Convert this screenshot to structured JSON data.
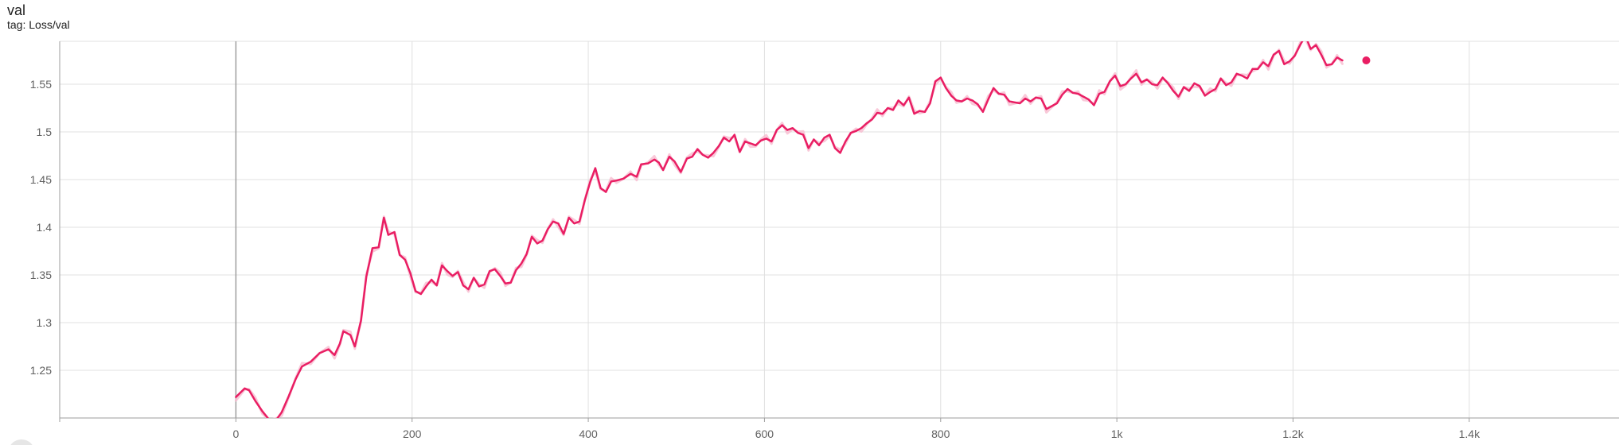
{
  "card": {
    "title": "val",
    "tag": "tag: Loss/val"
  },
  "colors": {
    "line": "#e91e63",
    "raw_line": "#f8bbd0",
    "grid": "#e0e0e0",
    "axis": "#9e9e9e",
    "zero_line": "#9e9e9e"
  },
  "chart_data": {
    "type": "line",
    "title": "val",
    "subtitle": "tag: Loss/val",
    "xlabel": "",
    "ylabel": "",
    "xlim": [
      -200,
      1570
    ],
    "ylim": [
      1.2,
      1.595
    ],
    "x_ticks": [
      0,
      200,
      400,
      600,
      800,
      1000,
      1200,
      1400
    ],
    "x_tick_labels": [
      "0",
      "200",
      "400",
      "600",
      "800",
      "1k",
      "1.2k",
      "1.4k"
    ],
    "y_ticks": [
      1.25,
      1.3,
      1.35,
      1.4,
      1.45,
      1.5,
      1.55
    ],
    "y_tick_labels": [
      "1.25",
      "1.3",
      "1.35",
      "1.4",
      "1.45",
      "1.5",
      "1.55"
    ],
    "grid": true,
    "series": [
      {
        "name": "",
        "color": "#e91e63",
        "points": [
          [
            0,
            1.222
          ],
          [
            10,
            1.231
          ],
          [
            15,
            1.229
          ],
          [
            22,
            1.218
          ],
          [
            30,
            1.207
          ],
          [
            38,
            1.198
          ],
          [
            45,
            1.197
          ],
          [
            52,
            1.206
          ],
          [
            60,
            1.223
          ],
          [
            68,
            1.241
          ],
          [
            75,
            1.254
          ],
          [
            85,
            1.259
          ],
          [
            95,
            1.268
          ],
          [
            105,
            1.272
          ],
          [
            112,
            1.266
          ],
          [
            118,
            1.278
          ],
          [
            122,
            1.291
          ],
          [
            130,
            1.287
          ],
          [
            135,
            1.275
          ],
          [
            142,
            1.302
          ],
          [
            148,
            1.348
          ],
          [
            155,
            1.378
          ],
          [
            162,
            1.379
          ],
          [
            168,
            1.41
          ],
          [
            173,
            1.392
          ],
          [
            180,
            1.395
          ],
          [
            186,
            1.371
          ],
          [
            192,
            1.366
          ],
          [
            198,
            1.352
          ],
          [
            204,
            1.333
          ],
          [
            210,
            1.33
          ],
          [
            216,
            1.338
          ],
          [
            222,
            1.345
          ],
          [
            228,
            1.339
          ],
          [
            234,
            1.36
          ],
          [
            240,
            1.354
          ],
          [
            246,
            1.349
          ],
          [
            252,
            1.353
          ],
          [
            258,
            1.339
          ],
          [
            264,
            1.335
          ],
          [
            270,
            1.347
          ],
          [
            276,
            1.338
          ],
          [
            282,
            1.34
          ],
          [
            288,
            1.354
          ],
          [
            294,
            1.356
          ],
          [
            300,
            1.349
          ],
          [
            306,
            1.341
          ],
          [
            312,
            1.342
          ],
          [
            318,
            1.355
          ],
          [
            324,
            1.362
          ],
          [
            330,
            1.372
          ],
          [
            336,
            1.39
          ],
          [
            342,
            1.383
          ],
          [
            348,
            1.386
          ],
          [
            354,
            1.398
          ],
          [
            360,
            1.406
          ],
          [
            366,
            1.404
          ],
          [
            372,
            1.393
          ],
          [
            378,
            1.41
          ],
          [
            384,
            1.404
          ],
          [
            390,
            1.406
          ],
          [
            396,
            1.428
          ],
          [
            402,
            1.447
          ],
          [
            408,
            1.462
          ],
          [
            414,
            1.441
          ],
          [
            420,
            1.437
          ],
          [
            426,
            1.448
          ],
          [
            432,
            1.449
          ],
          [
            440,
            1.451
          ],
          [
            448,
            1.456
          ],
          [
            455,
            1.453
          ],
          [
            460,
            1.466
          ],
          [
            468,
            1.467
          ],
          [
            475,
            1.471
          ],
          [
            480,
            1.468
          ],
          [
            485,
            1.46
          ],
          [
            492,
            1.474
          ],
          [
            498,
            1.469
          ],
          [
            505,
            1.458
          ],
          [
            512,
            1.472
          ],
          [
            518,
            1.474
          ],
          [
            524,
            1.482
          ],
          [
            530,
            1.476
          ],
          [
            536,
            1.473
          ],
          [
            542,
            1.478
          ],
          [
            548,
            1.485
          ],
          [
            554,
            1.494
          ],
          [
            560,
            1.49
          ],
          [
            566,
            1.497
          ],
          [
            572,
            1.479
          ],
          [
            578,
            1.49
          ],
          [
            584,
            1.488
          ],
          [
            590,
            1.486
          ],
          [
            596,
            1.491
          ],
          [
            602,
            1.493
          ],
          [
            608,
            1.49
          ],
          [
            614,
            1.502
          ],
          [
            620,
            1.507
          ],
          [
            626,
            1.502
          ],
          [
            632,
            1.504
          ],
          [
            638,
            1.499
          ],
          [
            644,
            1.497
          ],
          [
            650,
            1.483
          ],
          [
            656,
            1.492
          ],
          [
            662,
            1.486
          ],
          [
            668,
            1.494
          ],
          [
            674,
            1.497
          ],
          [
            680,
            1.483
          ],
          [
            686,
            1.478
          ],
          [
            692,
            1.49
          ],
          [
            698,
            1.499
          ],
          [
            704,
            1.501
          ],
          [
            710,
            1.504
          ],
          [
            716,
            1.509
          ],
          [
            722,
            1.513
          ],
          [
            728,
            1.52
          ],
          [
            734,
            1.519
          ],
          [
            740,
            1.525
          ],
          [
            746,
            1.523
          ],
          [
            752,
            1.533
          ],
          [
            758,
            1.528
          ],
          [
            764,
            1.536
          ],
          [
            770,
            1.519
          ],
          [
            776,
            1.522
          ],
          [
            782,
            1.521
          ],
          [
            788,
            1.53
          ],
          [
            794,
            1.553
          ],
          [
            800,
            1.557
          ],
          [
            806,
            1.546
          ],
          [
            812,
            1.538
          ],
          [
            818,
            1.533
          ],
          [
            824,
            1.532
          ],
          [
            830,
            1.535
          ],
          [
            836,
            1.533
          ],
          [
            842,
            1.529
          ],
          [
            848,
            1.521
          ],
          [
            854,
            1.534
          ],
          [
            860,
            1.546
          ],
          [
            866,
            1.54
          ],
          [
            872,
            1.539
          ],
          [
            878,
            1.532
          ],
          [
            884,
            1.531
          ],
          [
            890,
            1.53
          ],
          [
            896,
            1.535
          ],
          [
            902,
            1.532
          ],
          [
            908,
            1.536
          ],
          [
            914,
            1.535
          ],
          [
            920,
            1.524
          ],
          [
            926,
            1.527
          ],
          [
            932,
            1.53
          ],
          [
            938,
            1.539
          ],
          [
            944,
            1.545
          ],
          [
            950,
            1.541
          ],
          [
            956,
            1.54
          ],
          [
            962,
            1.537
          ],
          [
            968,
            1.534
          ],
          [
            974,
            1.528
          ],
          [
            980,
            1.54
          ],
          [
            986,
            1.542
          ],
          [
            992,
            1.553
          ],
          [
            998,
            1.559
          ],
          [
            1004,
            1.548
          ],
          [
            1010,
            1.55
          ],
          [
            1016,
            1.556
          ],
          [
            1022,
            1.561
          ],
          [
            1028,
            1.552
          ],
          [
            1034,
            1.555
          ],
          [
            1040,
            1.55
          ],
          [
            1046,
            1.549
          ],
          [
            1052,
            1.557
          ],
          [
            1058,
            1.551
          ],
          [
            1064,
            1.543
          ],
          [
            1070,
            1.537
          ],
          [
            1076,
            1.547
          ],
          [
            1082,
            1.543
          ],
          [
            1088,
            1.551
          ],
          [
            1094,
            1.548
          ],
          [
            1100,
            1.538
          ],
          [
            1106,
            1.542
          ],
          [
            1112,
            1.545
          ],
          [
            1118,
            1.556
          ],
          [
            1124,
            1.549
          ],
          [
            1130,
            1.552
          ],
          [
            1136,
            1.561
          ],
          [
            1142,
            1.559
          ],
          [
            1148,
            1.556
          ],
          [
            1154,
            1.566
          ],
          [
            1160,
            1.566
          ],
          [
            1166,
            1.573
          ],
          [
            1172,
            1.569
          ],
          [
            1178,
            1.581
          ],
          [
            1184,
            1.585
          ],
          [
            1190,
            1.571
          ],
          [
            1196,
            1.574
          ],
          [
            1202,
            1.58
          ],
          [
            1208,
            1.591
          ],
          [
            1214,
            1.601
          ],
          [
            1220,
            1.587
          ],
          [
            1226,
            1.591
          ],
          [
            1232,
            1.581
          ],
          [
            1238,
            1.57
          ],
          [
            1244,
            1.571
          ],
          [
            1250,
            1.578
          ],
          [
            1256,
            1.575
          ]
        ]
      }
    ],
    "last_point": [
      1256,
      1.575
    ]
  }
}
